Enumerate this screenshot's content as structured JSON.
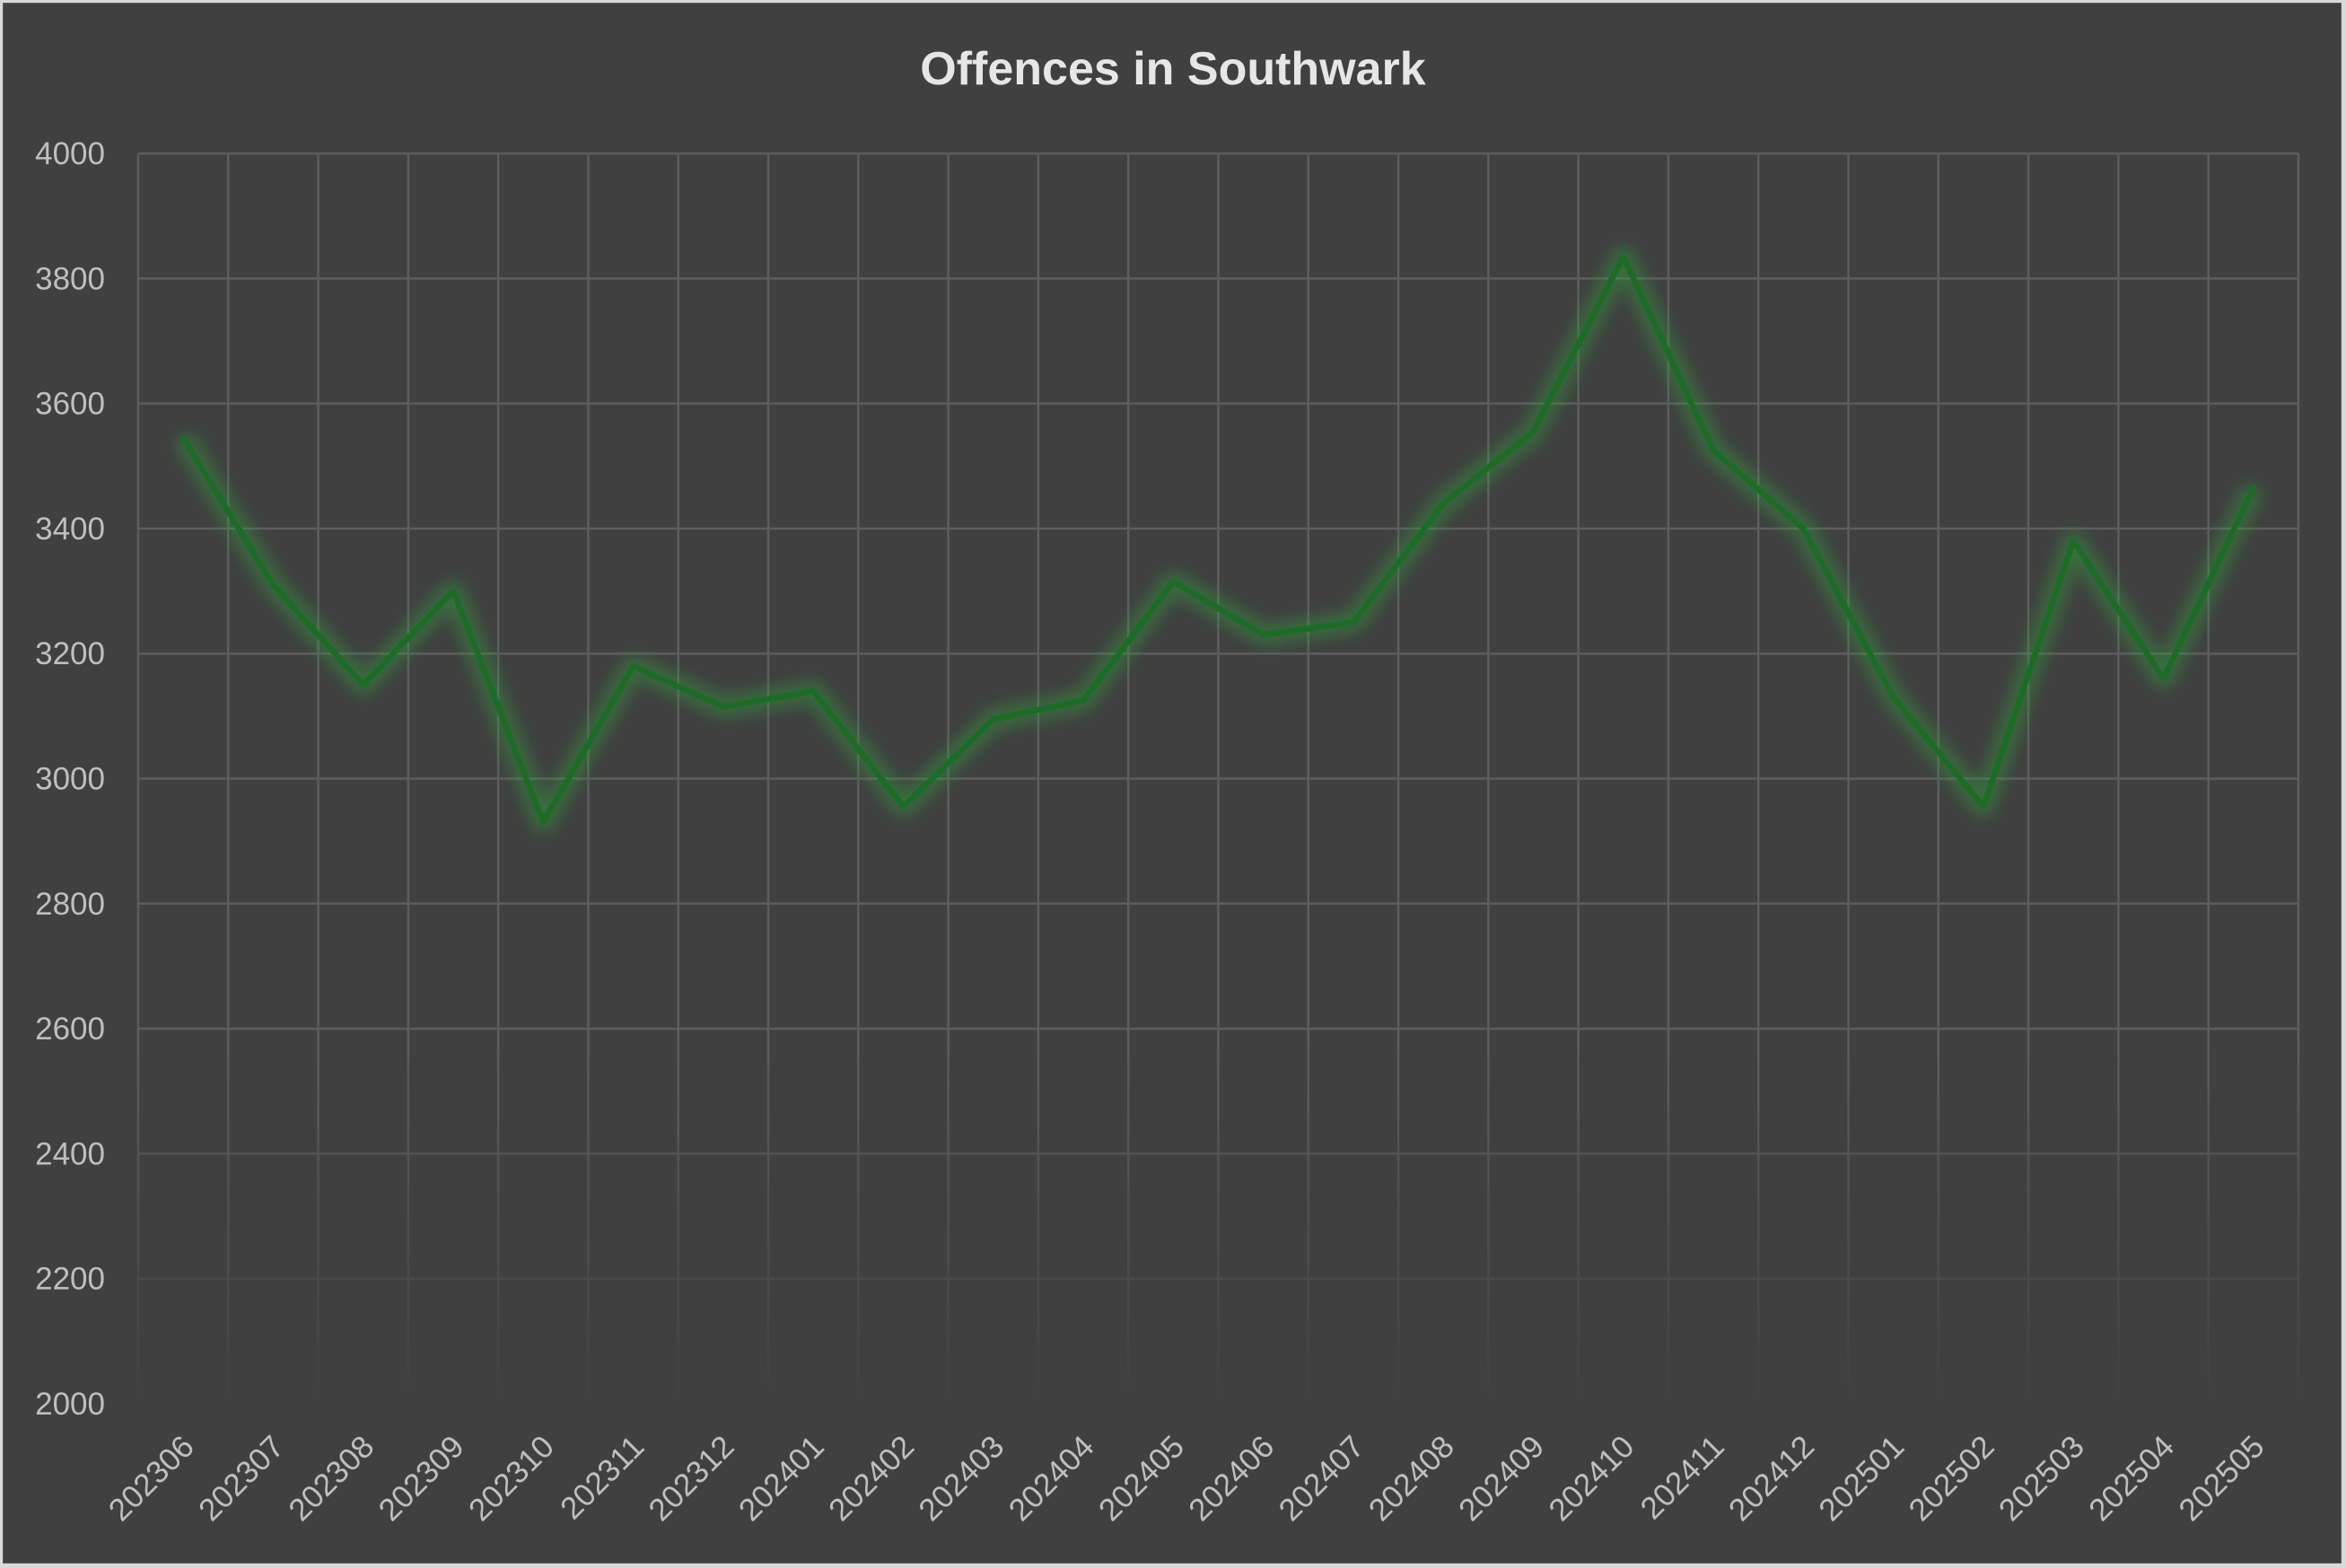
{
  "chart_data": {
    "type": "line",
    "title": "Offences in Southwark",
    "xlabel": "",
    "ylabel": "",
    "ylim": [
      2000,
      4000
    ],
    "y_ticks": [
      4000,
      3800,
      3600,
      3400,
      3200,
      3000,
      2800,
      2600,
      2400,
      2200,
      2000
    ],
    "grid": true,
    "legend": "none",
    "line_color": "#1e6b27",
    "glow_color": "#2fa83c",
    "categories": [
      "202306",
      "202307",
      "202308",
      "202309",
      "202310",
      "202311",
      "202312",
      "202401",
      "202402",
      "202403",
      "202404",
      "202405",
      "202406",
      "202407",
      "202408",
      "202409",
      "202410",
      "202411",
      "202412",
      "202501",
      "202502",
      "202503",
      "202504",
      "202505"
    ],
    "series": [
      {
        "values": [
          3545,
          3310,
          3150,
          3300,
          2930,
          3180,
          3115,
          3140,
          2955,
          3095,
          3125,
          3315,
          3230,
          3250,
          3440,
          3555,
          3835,
          3525,
          3400,
          3130,
          2955,
          3380,
          3160,
          3465
        ]
      }
    ]
  }
}
